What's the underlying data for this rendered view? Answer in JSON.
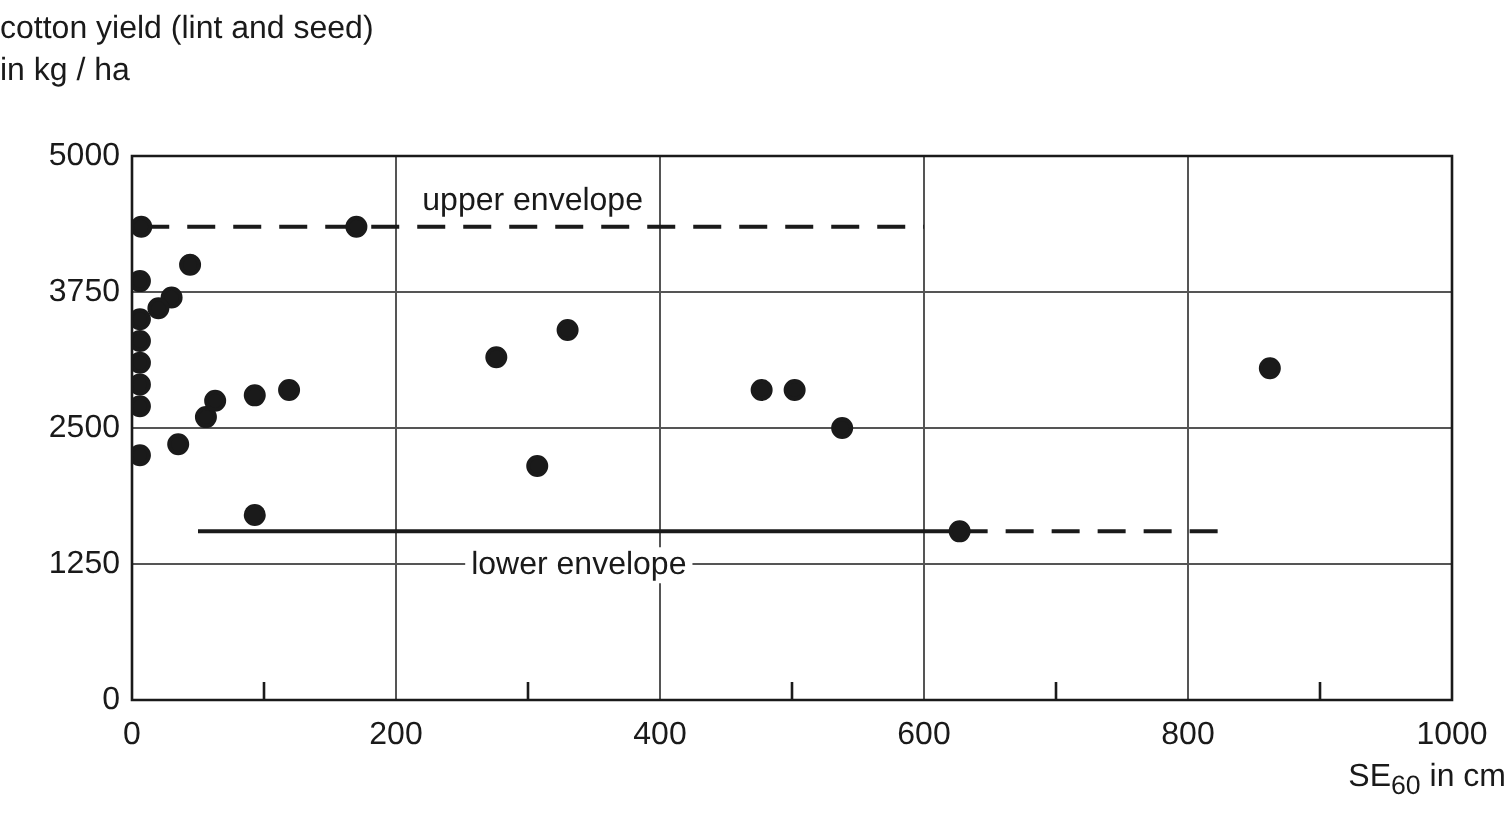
{
  "chart_data": {
    "type": "scatter",
    "ylabel": "cotton yield (lint and seed)\nin kg / ha",
    "xlabel": "SE$_{60}$ in cm",
    "xlim": [
      0,
      1000
    ],
    "xticks": [
      0,
      {
        "value": 100,
        "label": null
      },
      200,
      {
        "value": 300,
        "label": null
      },
      400,
      {
        "value": 500,
        "label": null
      },
      600,
      {
        "value": 700,
        "label": null
      },
      800,
      {
        "value": 900,
        "label": null
      },
      1000
    ],
    "ylim": [
      0,
      5000
    ],
    "yticks": [
      0,
      1250,
      2500,
      3750,
      5000
    ],
    "grid": true,
    "legend": false,
    "series": [
      {
        "marker": "circle",
        "color": "#1a1a1a",
        "x": [
          7,
          170,
          44,
          6,
          30,
          20,
          6,
          6,
          6,
          6,
          6,
          6,
          35,
          56,
          63,
          93,
          119,
          93,
          276,
          330,
          307,
          477,
          502,
          538,
          627,
          862
        ],
        "values": [
          4350,
          4350,
          4000,
          3850,
          3700,
          3600,
          3500,
          3300,
          3100,
          2900,
          2700,
          2250,
          2350,
          2600,
          2750,
          2800,
          2850,
          1700,
          3150,
          3400,
          2150,
          2850,
          2850,
          2500,
          1550,
          3050
        ]
      },
      {
        "type": "line",
        "name": "upper envelope",
        "marker": "none",
        "line_style": "dashed",
        "color": "#1a1a1a",
        "x": [
          7,
          600
        ],
        "values": [
          4350,
          4350
        ]
      },
      {
        "type": "line",
        "name": "lower envelope",
        "marker": "none",
        "line_style": "solid",
        "color": "#1a1a1a",
        "x": [
          50,
          627
        ],
        "values": [
          1550,
          1550
        ]
      },
      {
        "type": "line",
        "marker": "none",
        "line_style": "dashed",
        "color": "#1a1a1a",
        "x": [
          627,
          825
        ],
        "values": [
          1550,
          1550
        ]
      }
    ]
  }
}
